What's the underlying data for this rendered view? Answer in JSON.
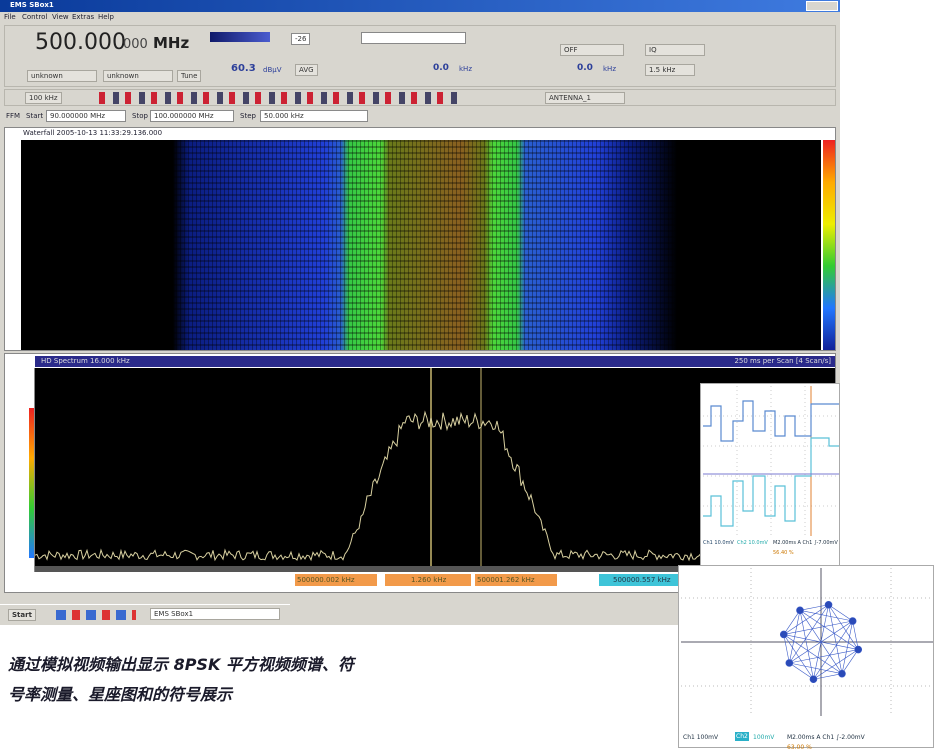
{
  "window": {
    "title": "EMS SBox1"
  },
  "menu": [
    "File",
    "Control",
    "View",
    "Extras",
    "Help"
  ],
  "toolbar": {
    "frequency": "500.000",
    "frequency_fine": "000",
    "frequency_unit": "MHz",
    "mode1": "unknown",
    "mode2": "unknown",
    "tune": "Tune",
    "level": "60.3",
    "level_unit": "dBμV",
    "avg": "AVG",
    "att": "-26",
    "offset": "0.0",
    "offset_unit": "kHz",
    "off": "OFF",
    "demod": "IQ",
    "offset2": "0.0",
    "offset2_unit": "kHz",
    "bandwidth": "1.5 kHz",
    "step": "100 kHz",
    "antenna": "ANTENNA_1"
  },
  "ffm": {
    "label": "FFM",
    "start_label": "Start",
    "start": "90.000000 MHz",
    "stop_label": "Stop",
    "stop": "100.000000 MHz",
    "step_label": "Step",
    "step": "50.000 kHz"
  },
  "waterfall": {
    "title": "Waterfall 2005-10-13 11:33:29.136.000"
  },
  "spectrum": {
    "title": "HD Spectrum 16.000 kHz",
    "scan": "250 ms per Scan [4 Scan/s]",
    "markers": [
      "500000.002 kHz",
      "1.260 kHz",
      "500001.262 kHz",
      "500000.557 kHz"
    ]
  },
  "taskbar": {
    "start": "Start",
    "task": "EMS SBox1"
  },
  "caption": [
    "通过模拟视频输出显示 8PSK 平方视频频谱、符",
    "号率测量、星座图和的符号展示"
  ],
  "scope1": {
    "ch1": "Ch1 10.0mV",
    "ch2": "Ch2 10.0mV",
    "time": "M2.00ms A Ch1 ∫-7.00mV",
    "percent": "56.40 %"
  },
  "scope2": {
    "ch1": "Ch1 100mV",
    "ch2": "Ch2",
    "ch2_value": "100mV",
    "time": "M2.00ms A Ch1 ∫-2.00mV",
    "percent": "63.00 %"
  }
}
